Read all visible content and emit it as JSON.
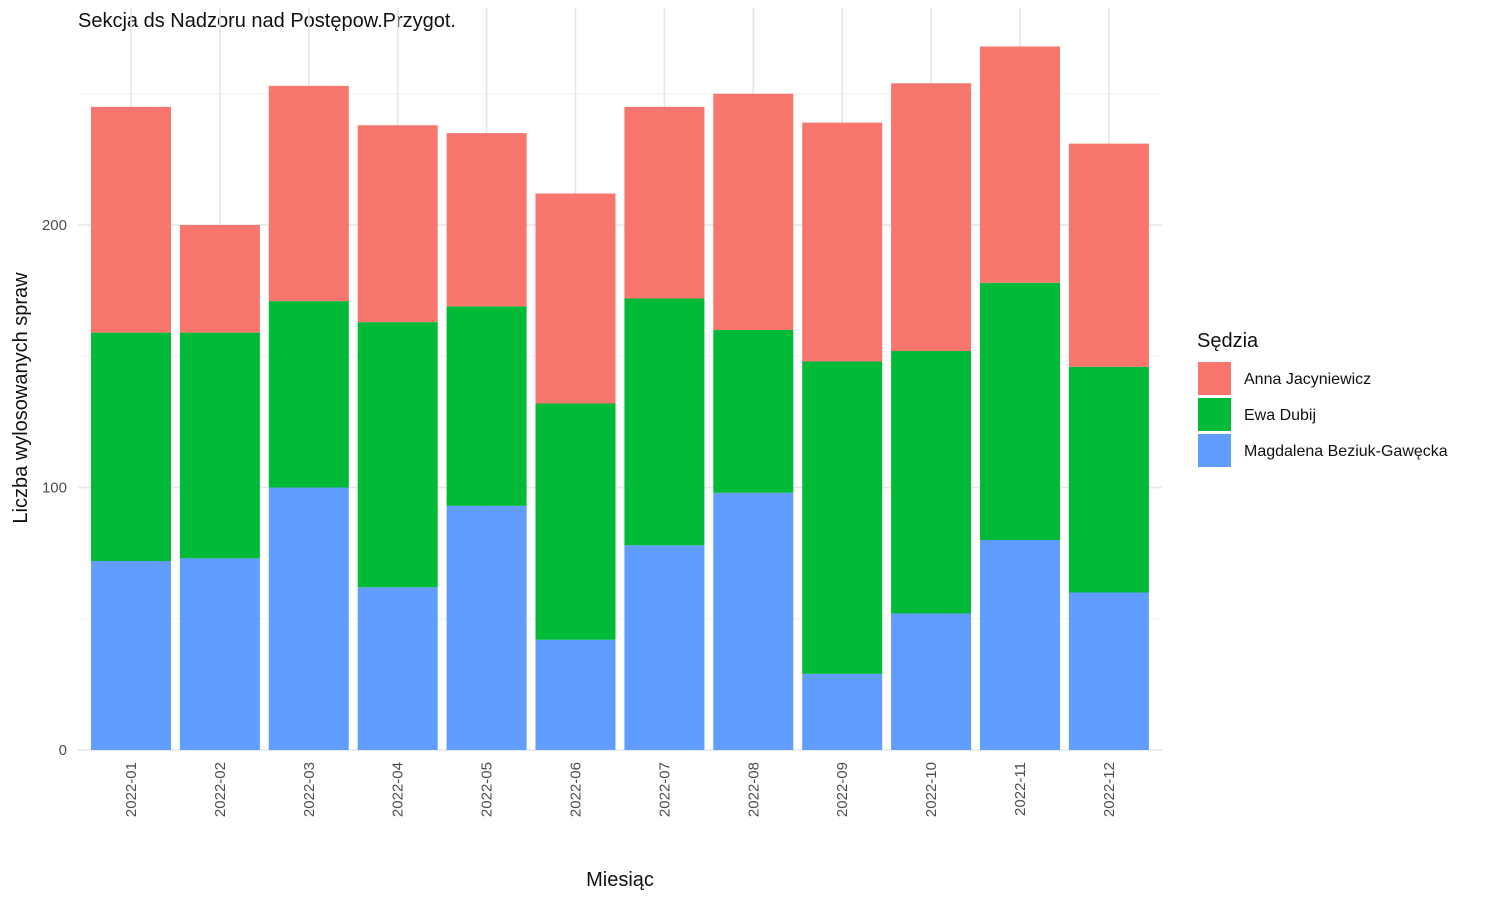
{
  "chart_data": {
    "type": "bar",
    "stacked": true,
    "title": "Sekcja ds Nadzoru nad Postępow.Przygot.",
    "xlabel": "Miesiąc",
    "ylabel": "Liczba wylosowanych spraw",
    "ylim": [
      0,
      280
    ],
    "yticks": [
      0,
      100,
      200
    ],
    "grid": true,
    "legend_position": "right",
    "legend_title": "Sędzia",
    "categories": [
      "2022-01",
      "2022-02",
      "2022-03",
      "2022-04",
      "2022-05",
      "2022-06",
      "2022-07",
      "2022-08",
      "2022-09",
      "2022-10",
      "2022-11",
      "2022-12"
    ],
    "series": [
      {
        "name": "Magdalena Beziuk-Gawęcka",
        "color": "#619CFF",
        "values": [
          72,
          73,
          100,
          62,
          93,
          42,
          78,
          98,
          29,
          52,
          80,
          60
        ]
      },
      {
        "name": "Ewa Dubij",
        "color": "#00BA38",
        "values": [
          87,
          86,
          71,
          101,
          76,
          90,
          94,
          62,
          119,
          100,
          98,
          86
        ]
      },
      {
        "name": "Anna Jacyniewicz",
        "color": "#F8766D",
        "values": [
          86,
          41,
          82,
          75,
          66,
          80,
          73,
          90,
          91,
          102,
          90,
          85
        ]
      }
    ],
    "legend_order": [
      "Anna Jacyniewicz",
      "Ewa Dubij",
      "Magdalena Beziuk-Gawęcka"
    ]
  }
}
